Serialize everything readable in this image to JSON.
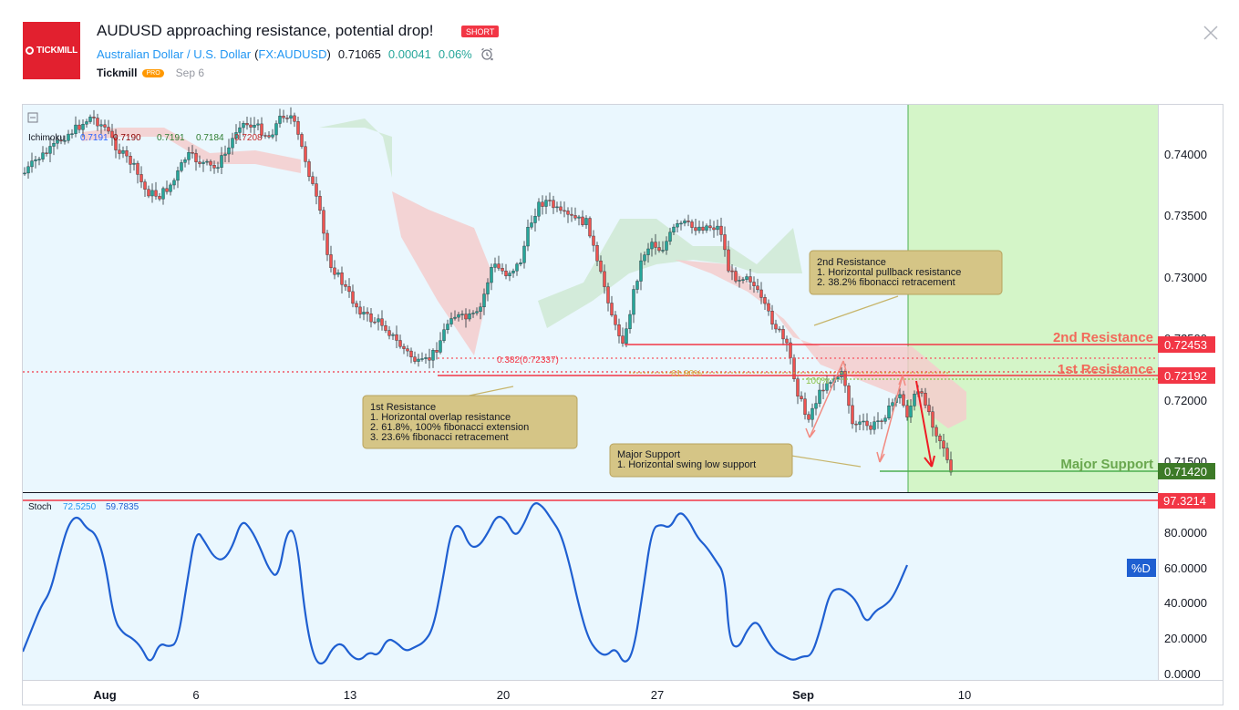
{
  "header": {
    "logo_text": "TICKMILL",
    "title": "AUDUSD approaching resistance, potential drop!",
    "badge": "SHORT",
    "symbol_name": "Australian Dollar / U.S. Dollar",
    "ticker_prefix": "(",
    "ticker": "FX:AUDUSD",
    "ticker_suffix": ")",
    "price": "0.71065",
    "change": "0.00041",
    "change_pct": "0.06%",
    "author": "Tickmill",
    "pro_badge": "PRO",
    "date": "Sep 6"
  },
  "colors": {
    "up": "#26a69a",
    "down": "#ef5350",
    "resistance": "#f23645",
    "support": "#4caf50",
    "stoch_line": "#1f5fd1",
    "note_bg": "#d5c586",
    "forecast_zone": "#d4f5c8"
  },
  "indicators": {
    "ichimoku_label": "Ichimoku",
    "ichimoku_values": [
      "0.7191",
      "0.7190",
      "0.7191",
      "0.7184",
      "0.7208"
    ],
    "stoch_label": "Stoch",
    "stoch_k": "72.5250",
    "stoch_d": "59.7835",
    "d_tag": "%D"
  },
  "price_axis": {
    "ticks": [
      "0.74000",
      "0.73500",
      "0.73000",
      "0.72500",
      "0.72000",
      "0.71500"
    ]
  },
  "price_tags": {
    "second_resistance": "0.72453",
    "first_resistance": "0.72192",
    "major_support": "0.71420"
  },
  "stoch_axis": {
    "ticks": [
      "80.0000",
      "60.0000",
      "40.0000",
      "20.0000",
      "0.0000"
    ],
    "tag": "97.3214"
  },
  "time_axis": {
    "labels": [
      "Aug",
      "6",
      "13",
      "20",
      "27",
      "Sep",
      "10"
    ]
  },
  "level_labels": {
    "second_resistance": "2nd Resistance",
    "first_resistance": "1st Resistance",
    "major_support": "Major Support",
    "fib_382": "0.382(0.72337)",
    "fib_618": "61.80%",
    "fib_100": "100%"
  },
  "notes": {
    "second_resistance": {
      "title": "2nd Resistance",
      "lines": [
        "1. Horizontal pullback resistance",
        "2. 38.2% fibonacci retracement"
      ]
    },
    "first_resistance": {
      "title": "1st Resistance",
      "lines": [
        "1. Horizontal overlap resistance",
        "2. 61.8%, 100% fibonacci extension",
        "3. 23.6% fibonacci retracement"
      ]
    },
    "major_support": {
      "title": "Major Support",
      "lines": [
        "1. Horizontal swing low support"
      ]
    }
  }
}
